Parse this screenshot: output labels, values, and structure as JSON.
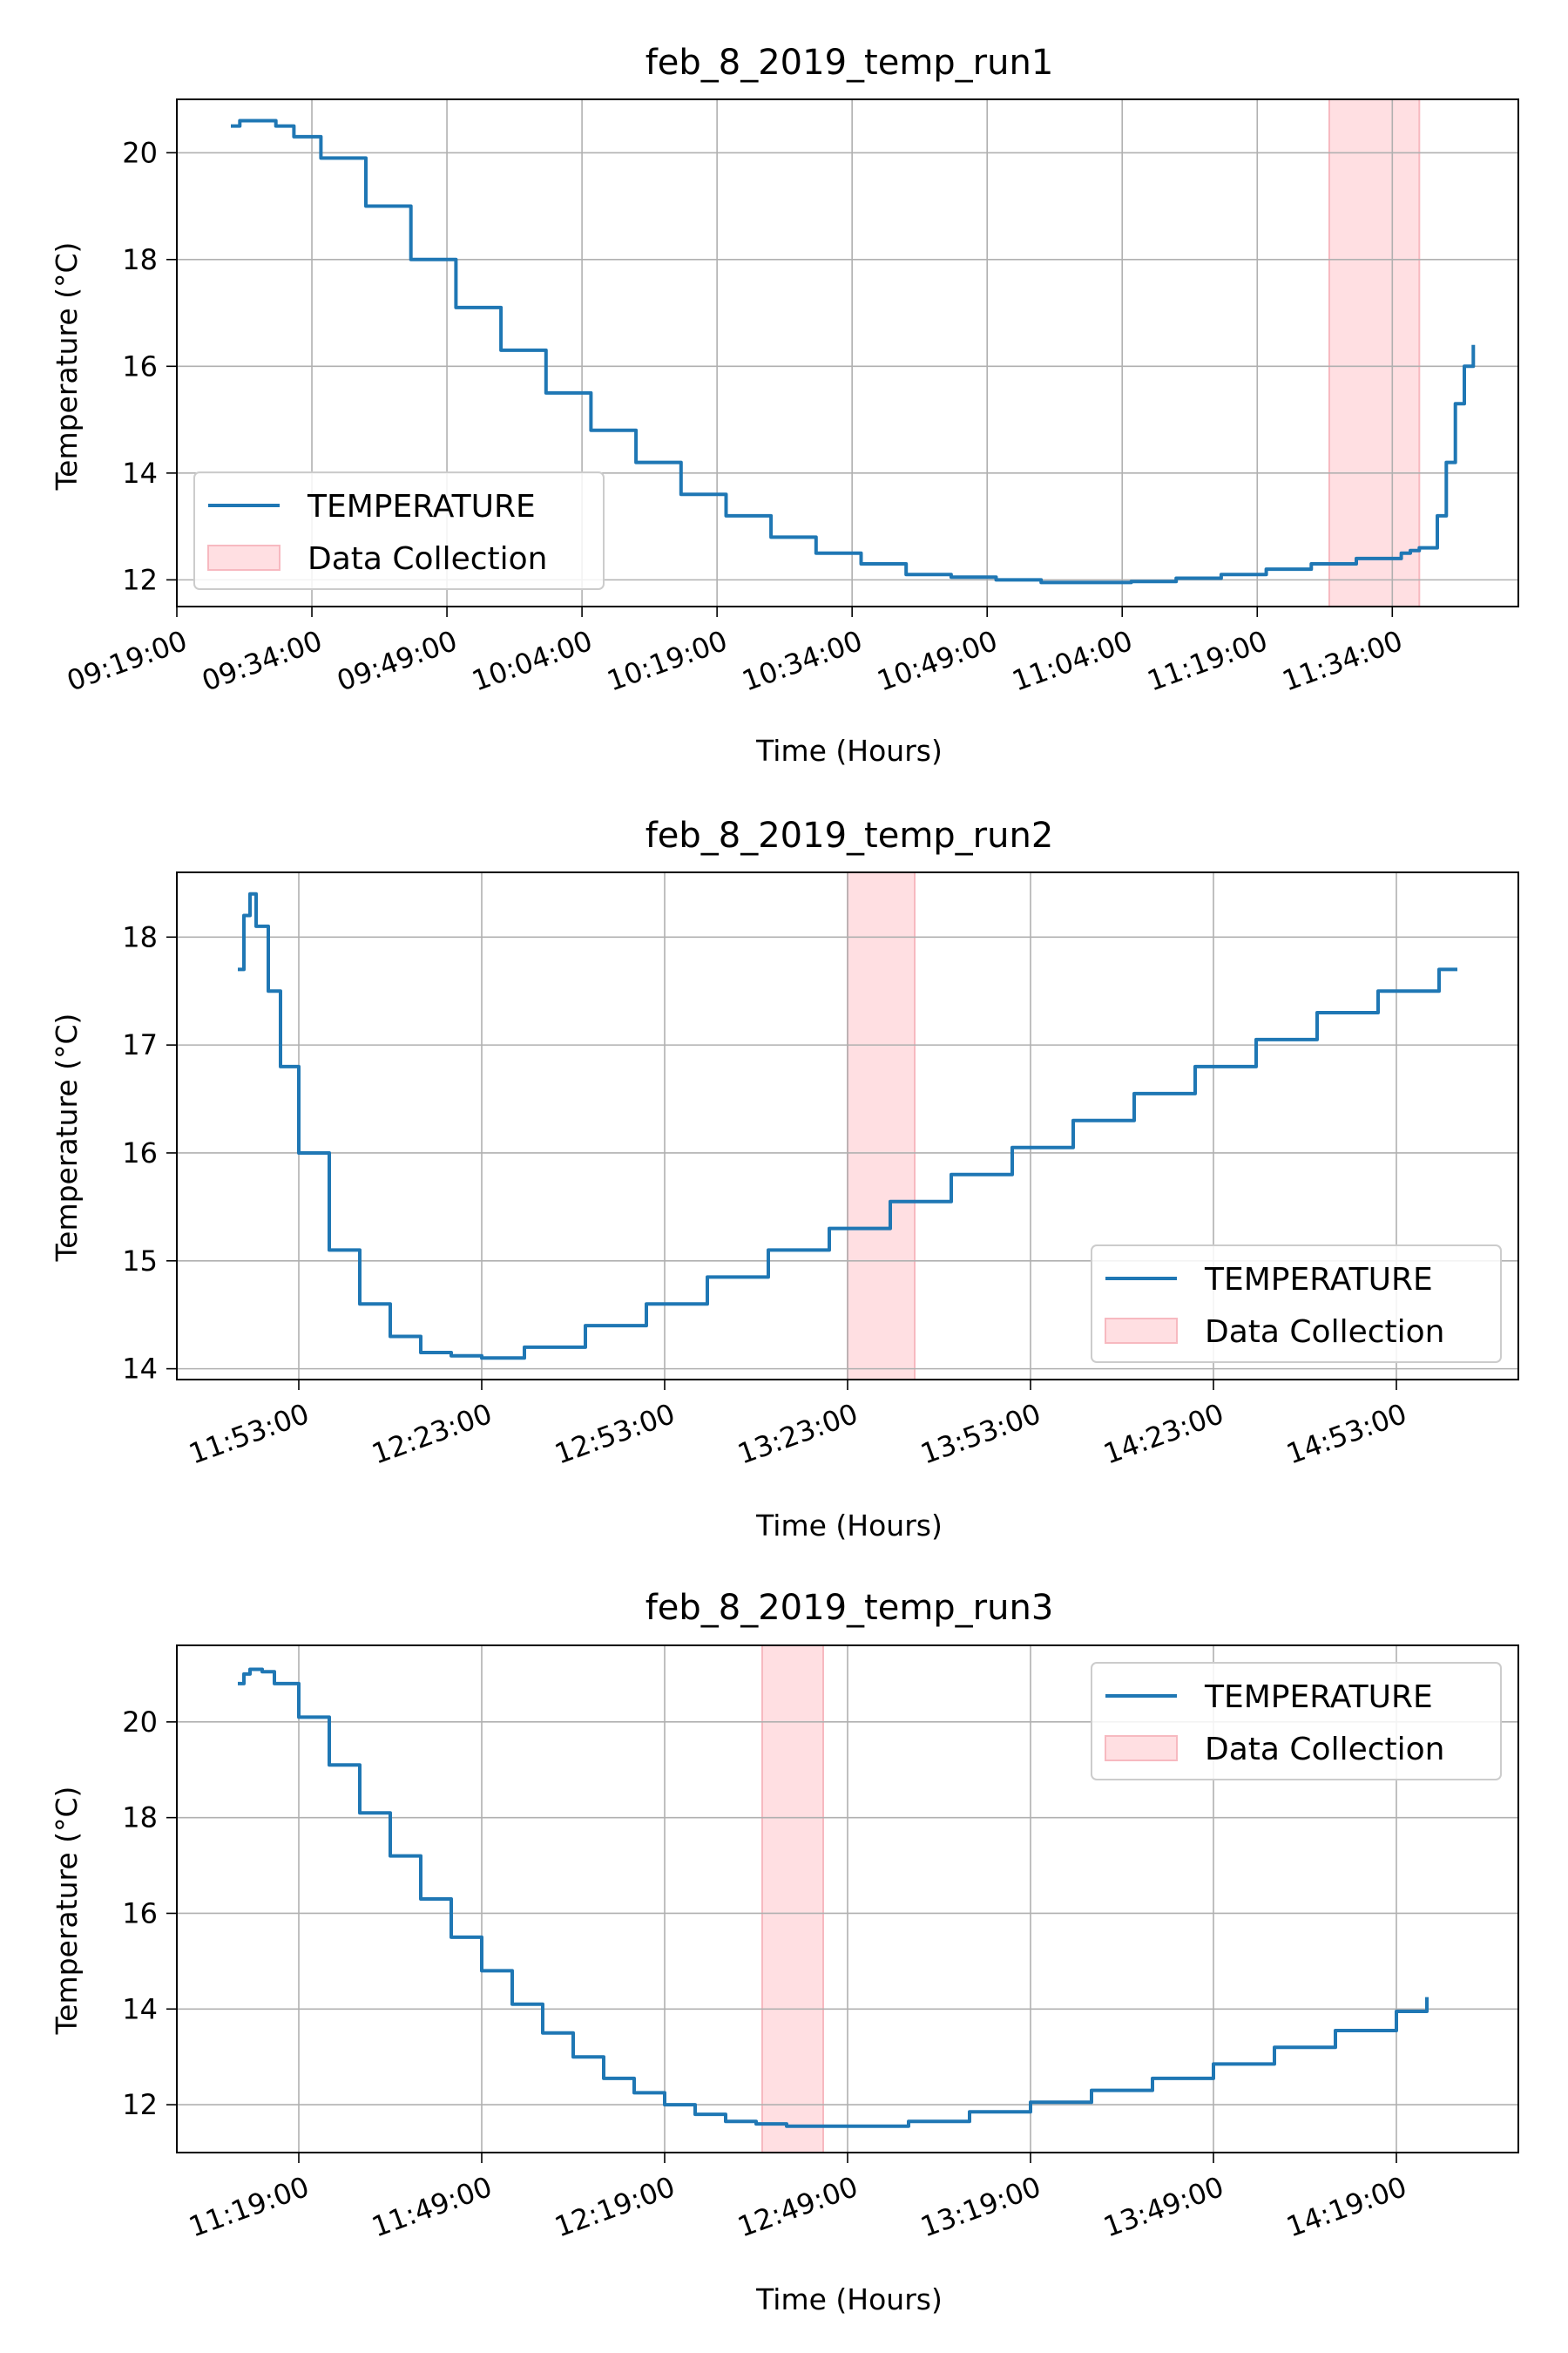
{
  "chart_data": [
    {
      "type": "line",
      "title": "feb_8_2019_temp_run1",
      "xlabel": "Time (Hours)",
      "ylabel": "Temperature ($^\\circ C$)",
      "ylabel_display": "Temperature (°C)",
      "xlim": [
        "09:19:00",
        "11:48:00"
      ],
      "ylim": [
        11.5,
        21.0
      ],
      "xticks": [
        "09:19:00",
        "09:34:00",
        "09:49:00",
        "10:04:00",
        "10:19:00",
        "10:34:00",
        "10:49:00",
        "11:04:00",
        "11:19:00",
        "11:34:00"
      ],
      "yticks": [
        12,
        14,
        16,
        18,
        20
      ],
      "grid": true,
      "legend_position": "lower-left",
      "legend": [
        "TEMPERATURE",
        "Data Collection"
      ],
      "line_color": "#1f77b4",
      "span_color": "#ffdfe2",
      "series": [
        {
          "name": "TEMPERATURE",
          "x": [
            "09:25:00",
            "09:26:00",
            "09:28:00",
            "09:30:00",
            "09:32:00",
            "09:35:00",
            "09:40:00",
            "09:45:00",
            "09:50:00",
            "09:55:00",
            "10:00:00",
            "10:05:00",
            "10:10:00",
            "10:15:00",
            "10:20:00",
            "10:25:00",
            "10:30:00",
            "10:35:00",
            "10:40:00",
            "10:45:00",
            "10:50:00",
            "10:55:00",
            "11:00:00",
            "11:05:00",
            "11:10:00",
            "11:15:00",
            "11:20:00",
            "11:25:00",
            "11:30:00",
            "11:35:00",
            "11:36:00",
            "11:37:00",
            "11:38:00",
            "11:39:00",
            "11:40:00",
            "11:41:00",
            "11:42:00",
            "11:43:00"
          ],
          "values": [
            20.5,
            20.6,
            20.6,
            20.5,
            20.3,
            19.9,
            19.0,
            18.0,
            17.1,
            16.3,
            15.5,
            14.8,
            14.2,
            13.6,
            13.2,
            12.8,
            12.5,
            12.3,
            12.1,
            12.05,
            12.0,
            11.95,
            11.95,
            11.97,
            12.03,
            12.1,
            12.2,
            12.3,
            12.4,
            12.5,
            12.55,
            12.6,
            12.6,
            13.2,
            14.2,
            15.3,
            16.0,
            16.4
          ]
        }
      ],
      "span": [
        "11:27:00",
        "11:37:00"
      ]
    },
    {
      "type": "line",
      "title": "feb_8_2019_temp_run2",
      "xlabel": "Time (Hours)",
      "ylabel": "Temperature ($^\\circ C$)",
      "ylabel_display": "Temperature (°C)",
      "xlim": [
        "11:33:00",
        "15:13:00"
      ],
      "ylim": [
        13.9,
        18.6
      ],
      "xticks": [
        "11:53:00",
        "12:23:00",
        "12:53:00",
        "13:23:00",
        "13:53:00",
        "14:23:00",
        "14:53:00"
      ],
      "yticks": [
        14,
        15,
        16,
        17,
        18
      ],
      "grid": true,
      "legend_position": "lower-right",
      "legend": [
        "TEMPERATURE",
        "Data Collection"
      ],
      "line_color": "#1f77b4",
      "span_color": "#ffdfe2",
      "series": [
        {
          "name": "TEMPERATURE",
          "x": [
            "11:43:00",
            "11:44:00",
            "11:45:00",
            "11:46:00",
            "11:48:00",
            "11:50:00",
            "11:53:00",
            "11:58:00",
            "12:03:00",
            "12:08:00",
            "12:13:00",
            "12:18:00",
            "12:23:00",
            "12:30:00",
            "12:40:00",
            "12:50:00",
            "13:00:00",
            "13:10:00",
            "13:20:00",
            "13:30:00",
            "13:40:00",
            "13:50:00",
            "14:00:00",
            "14:10:00",
            "14:20:00",
            "14:30:00",
            "14:40:00",
            "14:50:00",
            "15:00:00",
            "15:03:00"
          ],
          "values": [
            17.7,
            18.2,
            18.4,
            18.1,
            17.5,
            16.8,
            16.0,
            15.1,
            14.6,
            14.3,
            14.15,
            14.12,
            14.1,
            14.2,
            14.4,
            14.6,
            14.85,
            15.1,
            15.3,
            15.55,
            15.8,
            16.05,
            16.3,
            16.55,
            16.8,
            17.05,
            17.3,
            17.5,
            17.7,
            17.7
          ]
        }
      ],
      "span": [
        "13:23:00",
        "13:34:00"
      ]
    },
    {
      "type": "line",
      "title": "feb_8_2019_temp_run3",
      "xlabel": "Time (Hours)",
      "ylabel": "Temperature ($^\\circ C$)",
      "ylabel_display": "Temperature (°C)",
      "xlim": [
        "10:59:00",
        "14:39:00"
      ],
      "ylim": [
        11.0,
        21.6
      ],
      "xticks": [
        "11:19:00",
        "11:49:00",
        "12:19:00",
        "12:49:00",
        "13:19:00",
        "13:49:00",
        "14:19:00"
      ],
      "yticks": [
        12,
        14,
        16,
        18,
        20
      ],
      "grid": true,
      "legend_position": "top-right",
      "legend": [
        "TEMPERATURE",
        "Data Collection"
      ],
      "line_color": "#1f77b4",
      "span_color": "#ffdfe2",
      "series": [
        {
          "name": "TEMPERATURE",
          "x": [
            "11:09:00",
            "11:10:00",
            "11:11:00",
            "11:13:00",
            "11:15:00",
            "11:19:00",
            "11:24:00",
            "11:29:00",
            "11:34:00",
            "11:39:00",
            "11:44:00",
            "11:49:00",
            "11:54:00",
            "11:59:00",
            "12:04:00",
            "12:09:00",
            "12:14:00",
            "12:19:00",
            "12:24:00",
            "12:29:00",
            "12:34:00",
            "12:39:00",
            "12:44:00",
            "12:49:00",
            "12:59:00",
            "13:09:00",
            "13:19:00",
            "13:29:00",
            "13:39:00",
            "13:49:00",
            "13:59:00",
            "14:09:00",
            "14:19:00",
            "14:24:00"
          ],
          "values": [
            20.8,
            21.0,
            21.1,
            21.05,
            20.8,
            20.1,
            19.1,
            18.1,
            17.2,
            16.3,
            15.5,
            14.8,
            14.1,
            13.5,
            13.0,
            12.55,
            12.25,
            12.0,
            11.8,
            11.65,
            11.6,
            11.55,
            11.55,
            11.55,
            11.65,
            11.85,
            12.05,
            12.3,
            12.55,
            12.85,
            13.2,
            13.55,
            13.95,
            14.25
          ]
        }
      ],
      "span": [
        "12:35:00",
        "12:45:00"
      ]
    }
  ]
}
